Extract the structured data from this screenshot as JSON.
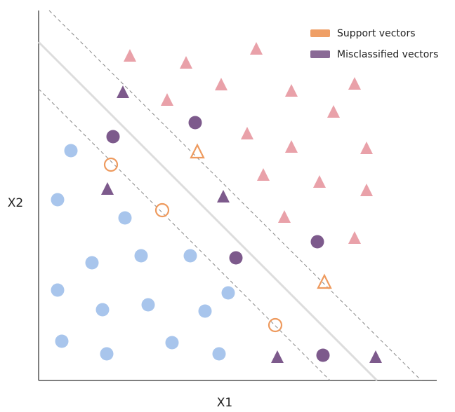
{
  "axes": {
    "x_label": "X1",
    "y_label": "X2"
  },
  "legend": {
    "items": [
      {
        "label": "Support vectors"
      },
      {
        "label": "Misclassified vectors"
      }
    ]
  }
}
